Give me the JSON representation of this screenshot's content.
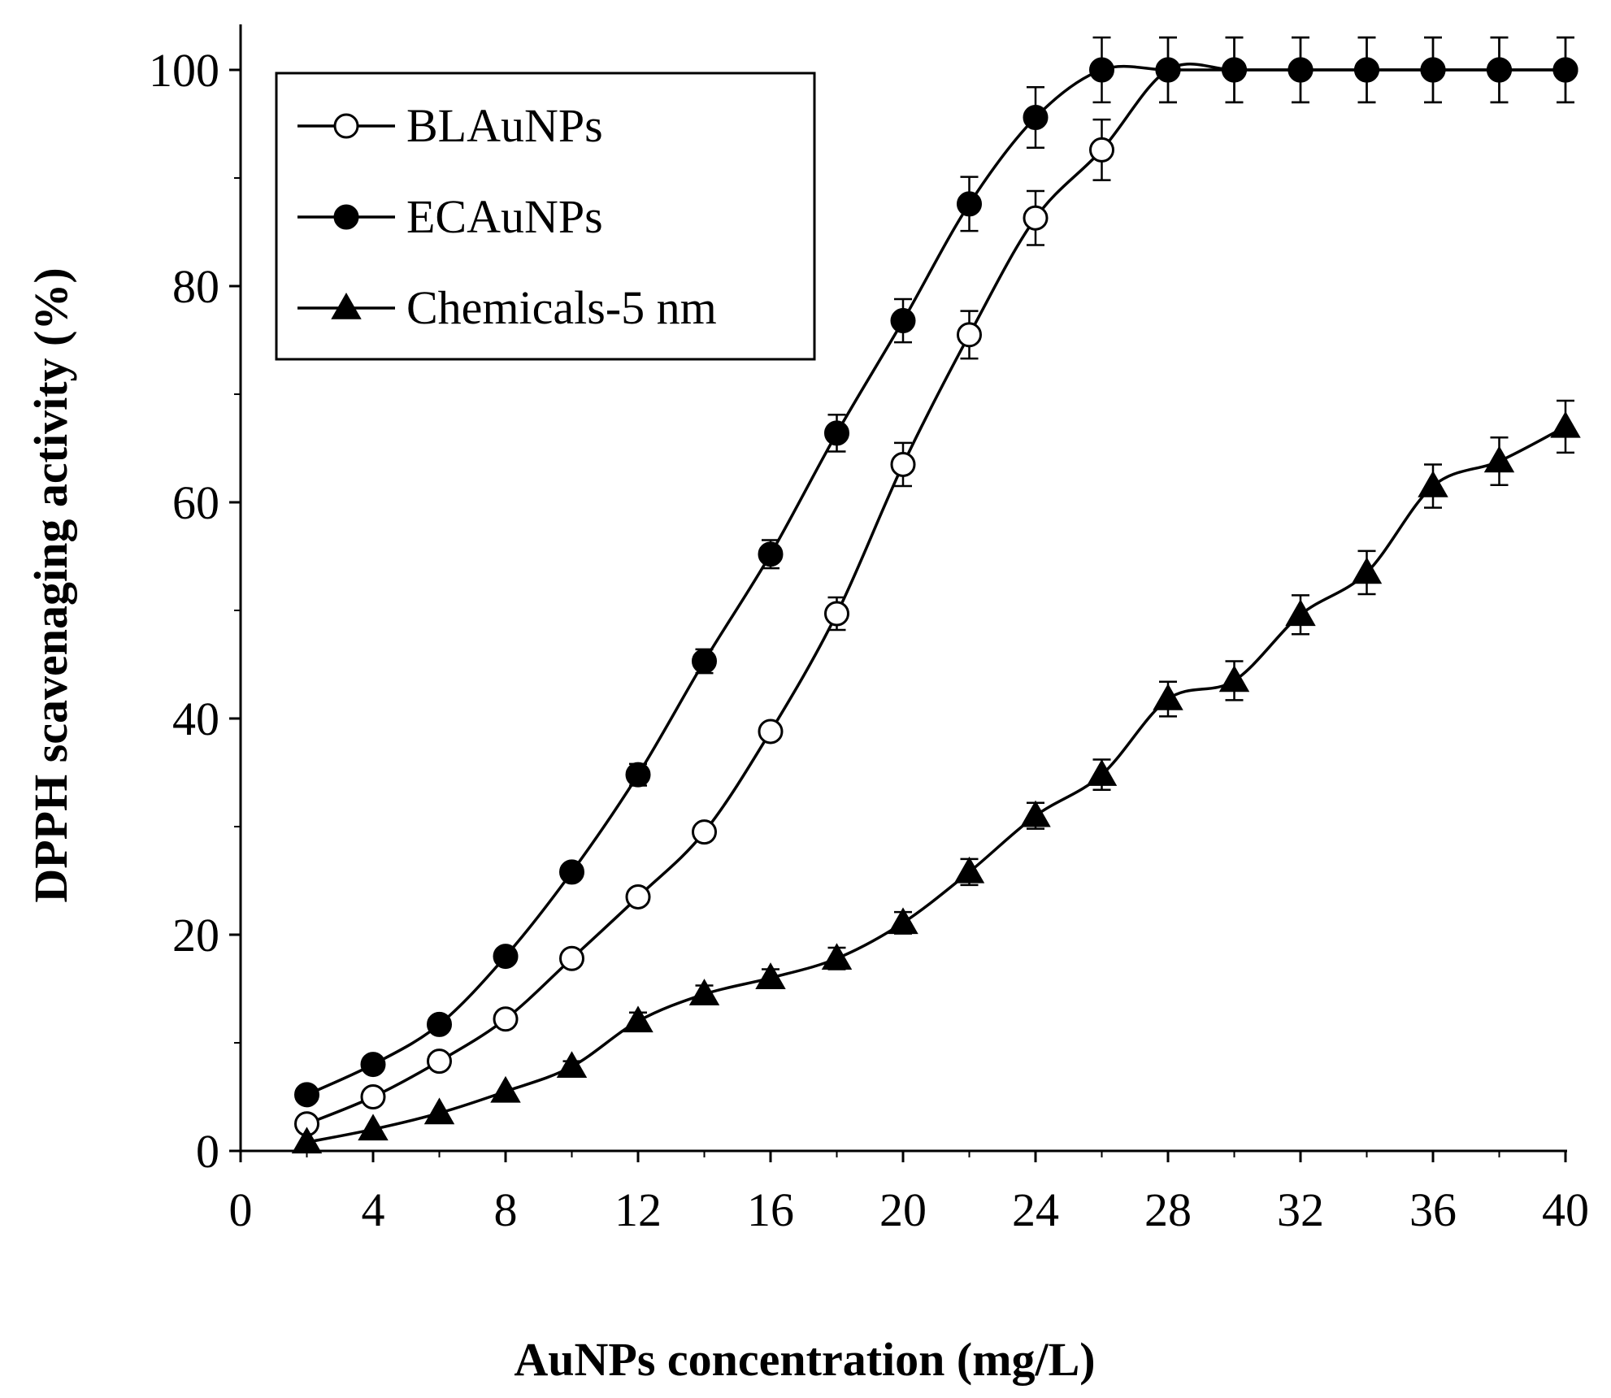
{
  "chart_data": {
    "type": "line",
    "title": "",
    "xlabel": "AuNPs concentration  (mg/L)",
    "ylabel": "DPPH scavenaging activity (%)",
    "xlim": [
      0,
      40
    ],
    "ylim": [
      0,
      100
    ],
    "xticks": [
      0,
      4,
      8,
      12,
      16,
      20,
      24,
      28,
      32,
      36,
      40
    ],
    "yticks": [
      0,
      20,
      40,
      60,
      80,
      100
    ],
    "grid": false,
    "legend_position": "top-left",
    "x": [
      2,
      4,
      6,
      8,
      10,
      12,
      14,
      16,
      18,
      20,
      22,
      24,
      26,
      28,
      30,
      32,
      34,
      36,
      38,
      40
    ],
    "series": [
      {
        "name": "BLAuNPs",
        "marker": "open-circle",
        "values": [
          2.5,
          5,
          8.3,
          12.2,
          17.8,
          23.5,
          29.5,
          38.8,
          49.7,
          63.5,
          75.5,
          86.3,
          92.6,
          100,
          100,
          100,
          100,
          100,
          100,
          100
        ],
        "errors": [
          0,
          0,
          0,
          0,
          0,
          0,
          0,
          0,
          1.5,
          2,
          2.2,
          2.5,
          2.8,
          3,
          3,
          3,
          3,
          3,
          3,
          3
        ]
      },
      {
        "name": "ECAuNPs",
        "marker": "filled-circle",
        "values": [
          5.2,
          8,
          11.7,
          18,
          25.8,
          34.8,
          45.3,
          55.2,
          66.4,
          76.8,
          87.6,
          95.6,
          100,
          100,
          100,
          100,
          100,
          100,
          100,
          100
        ],
        "errors": [
          0,
          0,
          0,
          0,
          0,
          1,
          1.1,
          1.3,
          1.7,
          2,
          2.5,
          2.8,
          3,
          3,
          3,
          3,
          3,
          3,
          3,
          3
        ]
      },
      {
        "name": "Chemicals-5 nm",
        "marker": "filled-triangle",
        "values": [
          0.8,
          2,
          3.5,
          5.5,
          7.8,
          12,
          14.5,
          16,
          17.8,
          21.1,
          25.8,
          31,
          34.8,
          41.8,
          43.5,
          49.6,
          53.5,
          61.5,
          63.8,
          67
        ],
        "errors": [
          0,
          0,
          0,
          0,
          0.5,
          0.8,
          0.8,
          0.8,
          1,
          1,
          1.2,
          1.2,
          1.4,
          1.6,
          1.8,
          1.8,
          2,
          2,
          2.2,
          2.4
        ]
      }
    ]
  }
}
